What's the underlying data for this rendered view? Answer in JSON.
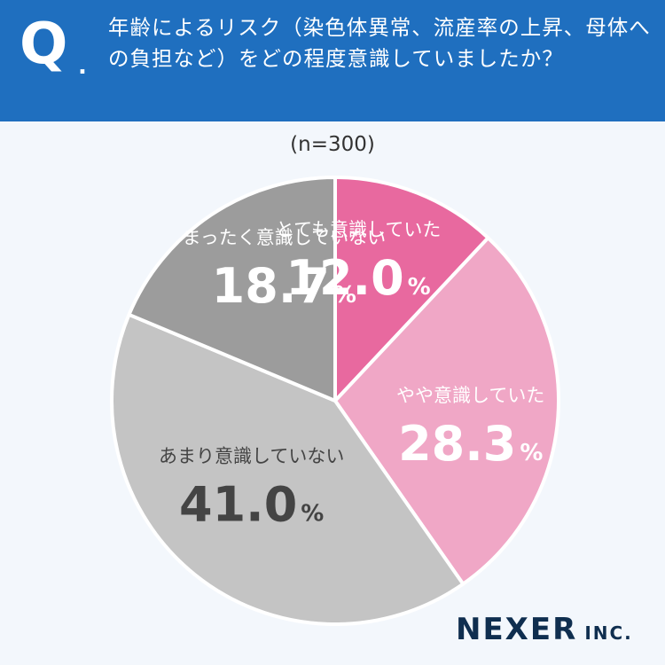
{
  "header": {
    "q_mark": "Q",
    "q_dot": ".",
    "question": "年齢によるリスク（染色体異常、流産率の上昇、母体への負担など）をどの程度意識していましたか？"
  },
  "chart_data": {
    "type": "pie",
    "title": "",
    "sample_size": "(n=300)",
    "unit": "%",
    "slices": [
      {
        "label": "とても意識していた",
        "value": 12.0,
        "value_text": "12.0",
        "color": "#e8699f",
        "text_color": "#ffffff"
      },
      {
        "label": "やや意識していた",
        "value": 28.3,
        "value_text": "28.3",
        "color": "#f0a7c6",
        "text_color": "#ffffff"
      },
      {
        "label": "あまり意識していない",
        "value": 41.0,
        "value_text": "41.0",
        "color": "#c4c4c4",
        "text_color": "#444444"
      },
      {
        "label": "まったく意識していない",
        "value": 18.7,
        "value_text": "18.7",
        "color": "#9c9c9c",
        "text_color": "#ffffff"
      }
    ]
  },
  "logo": {
    "name": "NEXER",
    "suffix": "INC."
  }
}
